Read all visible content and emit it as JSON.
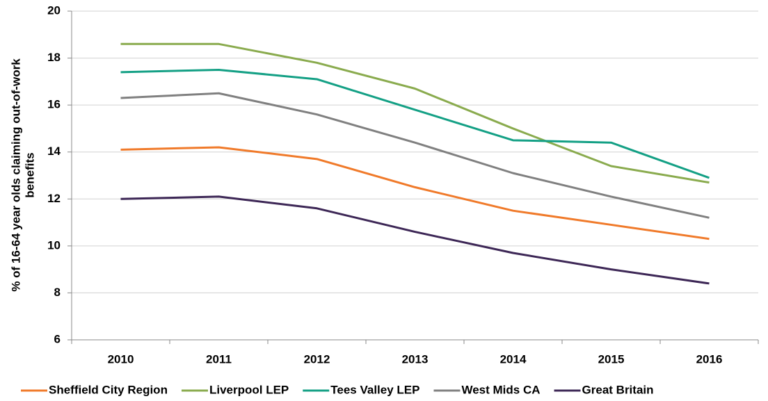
{
  "chart_data": {
    "type": "line",
    "y_label": [
      "% of 16-64 year olds claiming out-of-work",
      "benefits"
    ],
    "categories": [
      "2010",
      "2011",
      "2012",
      "2013",
      "2014",
      "2015",
      "2016"
    ],
    "series": [
      {
        "name": "Sheffield City Region",
        "color": "#f07a2a",
        "values": [
          14.1,
          14.2,
          13.7,
          12.5,
          11.5,
          10.9,
          10.3
        ]
      },
      {
        "name": "Liverpool LEP",
        "color": "#8aab4e",
        "values": [
          18.6,
          18.6,
          17.8,
          16.7,
          15.0,
          13.4,
          12.7
        ]
      },
      {
        "name": "Tees Valley LEP",
        "color": "#14a085",
        "values": [
          17.4,
          17.5,
          17.1,
          15.8,
          14.5,
          14.4,
          12.9
        ]
      },
      {
        "name": "West Mids CA",
        "color": "#808080",
        "values": [
          16.3,
          16.5,
          15.6,
          14.4,
          13.1,
          12.1,
          11.2
        ]
      },
      {
        "name": "Great Britain",
        "color": "#3d2756",
        "values": [
          12.0,
          12.1,
          11.6,
          10.6,
          9.7,
          9.0,
          8.4
        ]
      }
    ],
    "ylim": [
      6,
      20
    ],
    "yticks": [
      6,
      8,
      10,
      12,
      14,
      16,
      18,
      20
    ],
    "grid": true,
    "legend": "bottom"
  }
}
